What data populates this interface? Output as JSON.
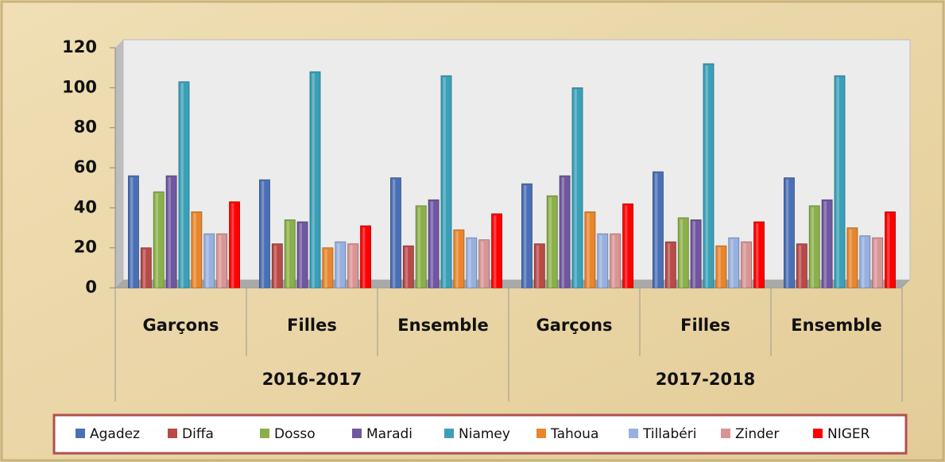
{
  "chart_data": {
    "type": "bar",
    "categories": [
      "Garçons",
      "Filles",
      "Ensemble",
      "Garçons",
      "Filles",
      "Ensemble"
    ],
    "groups": [
      "2016-2017",
      "2017-2018"
    ],
    "series": [
      {
        "name": "Agadez",
        "color": "#4a6fb5",
        "values": [
          56,
          54,
          55,
          52,
          58,
          55
        ]
      },
      {
        "name": "Diffa",
        "color": "#b84a48",
        "values": [
          20,
          22,
          21,
          22,
          23,
          22
        ]
      },
      {
        "name": "Dosso",
        "color": "#8bb04a",
        "values": [
          48,
          34,
          41,
          46,
          35,
          41
        ]
      },
      {
        "name": "Maradi",
        "color": "#7057a0",
        "values": [
          56,
          33,
          44,
          56,
          34,
          44
        ]
      },
      {
        "name": "Niamey",
        "color": "#3aa0b8",
        "values": [
          103,
          108,
          106,
          100,
          112,
          106
        ]
      },
      {
        "name": "Tahoua",
        "color": "#e8862e",
        "values": [
          38,
          20,
          29,
          38,
          21,
          30
        ]
      },
      {
        "name": "Tillabéri",
        "color": "#97b0df",
        "values": [
          27,
          23,
          25,
          27,
          25,
          26
        ]
      },
      {
        "name": "Zinder",
        "color": "#d99594",
        "values": [
          27,
          22,
          24,
          27,
          23,
          25
        ]
      },
      {
        "name": "NIGER",
        "color": "#ff0000",
        "values": [
          43,
          31,
          37,
          42,
          33,
          38
        ]
      }
    ],
    "ylim": [
      0,
      120
    ],
    "yticks": [
      0,
      20,
      40,
      60,
      80,
      100,
      120
    ],
    "grid": false,
    "legend": "bottom"
  }
}
